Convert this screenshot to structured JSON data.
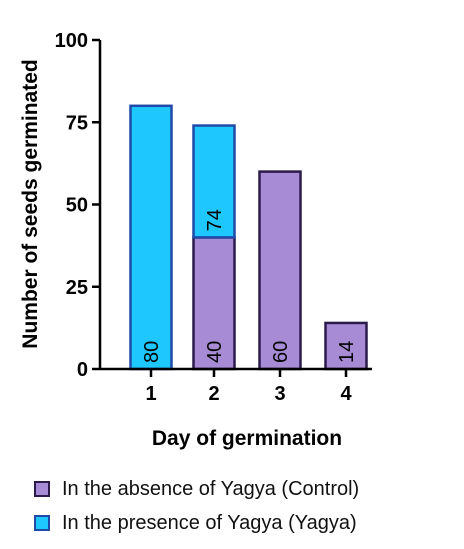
{
  "chart_data": {
    "type": "bar",
    "stacked": true,
    "categories": [
      "1",
      "2",
      "3",
      "4"
    ],
    "series": [
      {
        "name": "In the absence of Yagya (Control)",
        "color": "#a78bd4",
        "stroke": "#2b1a4a",
        "values": [
          null,
          40,
          60,
          14
        ],
        "labels": [
          "",
          "40",
          "60",
          "14"
        ]
      },
      {
        "name": "In the presence of Yagya (Yagya)",
        "color": "#1ec8ff",
        "stroke": "#1f4aa8",
        "values": [
          80,
          34,
          null,
          null
        ],
        "labels": [
          "80",
          "74",
          "",
          ""
        ]
      }
    ],
    "xlabel": "Day of germination",
    "ylabel": "Number of seeds germinated",
    "ylim": [
      0,
      100
    ],
    "yticks": [
      0,
      25,
      50,
      75,
      100
    ],
    "grid": false,
    "legend_position": "bottom-left"
  }
}
